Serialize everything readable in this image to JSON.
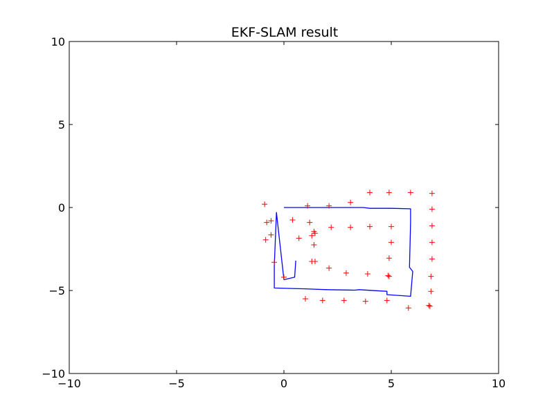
{
  "chart_data": {
    "type": "scatter",
    "title": "EKF-SLAM result",
    "xlabel": "",
    "ylabel": "",
    "xlim": [
      -10,
      10
    ],
    "ylim": [
      -10,
      10
    ],
    "xticks": [
      -10,
      -5,
      0,
      5,
      10
    ],
    "yticks": [
      -10,
      -5,
      0,
      5,
      10
    ],
    "xtick_labels": [
      "−10",
      "−5",
      "0",
      "5",
      "10"
    ],
    "ytick_labels": [
      "−10",
      "−5",
      "0",
      "5",
      "10"
    ],
    "grid": false,
    "colors": {
      "trajectory": "#0000ff",
      "landmarks": "#ff0000"
    },
    "series": [
      {
        "kind": "line",
        "points": [
          [
            0,
            0
          ],
          [
            1,
            0
          ],
          [
            2,
            0
          ],
          [
            3,
            0
          ],
          [
            3.7,
            0
          ],
          [
            4,
            -0.05
          ],
          [
            5,
            -0.05
          ],
          [
            5.9,
            -0.08
          ],
          [
            5.9,
            -0.9
          ],
          [
            5.85,
            -3.6
          ],
          [
            6.0,
            -3.85
          ],
          [
            5.9,
            -5.35
          ],
          [
            4.8,
            -5.25
          ],
          [
            4.8,
            -5.05
          ],
          [
            3.5,
            -4.95
          ],
          [
            3.3,
            -4.98
          ],
          [
            2.0,
            -4.95
          ],
          [
            1.0,
            -4.9
          ],
          [
            -0.45,
            -4.85
          ],
          [
            -0.45,
            -3.5
          ],
          [
            -0.35,
            -0.3
          ],
          [
            0,
            -4.35
          ],
          [
            0.5,
            -4.2
          ],
          [
            0.55,
            -3.2
          ]
        ]
      },
      {
        "kind": "scatter",
        "marker": "plus",
        "points": [
          [
            -0.9,
            0.2
          ],
          [
            1.1,
            0.1
          ],
          [
            2.1,
            0.1
          ],
          [
            3.1,
            0.3
          ],
          [
            4.0,
            0.9
          ],
          [
            4.9,
            0.9
          ],
          [
            5.9,
            0.9
          ],
          [
            6.9,
            0.85
          ],
          [
            -0.8,
            -0.9
          ],
          [
            -0.6,
            -0.8
          ],
          [
            0.4,
            -0.75
          ],
          [
            1.2,
            -0.9
          ],
          [
            -0.6,
            -1.65
          ],
          [
            -0.85,
            -1.95
          ],
          [
            0.7,
            -1.85
          ],
          [
            1.3,
            -1.7
          ],
          [
            1.4,
            -1.45
          ],
          [
            1.45,
            -1.55
          ],
          [
            2.2,
            -1.2
          ],
          [
            3.1,
            -1.2
          ],
          [
            4.0,
            -1.15
          ],
          [
            5.0,
            -1.15
          ],
          [
            6.9,
            -0.1
          ],
          [
            6.9,
            -1.1
          ],
          [
            1.4,
            -2.25
          ],
          [
            5.0,
            -2.1
          ],
          [
            6.9,
            -2.1
          ],
          [
            -0.45,
            -3.3
          ],
          [
            1.3,
            -3.25
          ],
          [
            1.45,
            -3.25
          ],
          [
            4.9,
            -3.05
          ],
          [
            6.9,
            -3.1
          ],
          [
            2.1,
            -3.65
          ],
          [
            2.9,
            -3.95
          ],
          [
            3.9,
            -4.0
          ],
          [
            4.85,
            -4.1
          ],
          [
            4.9,
            -4.15
          ],
          [
            6.85,
            -4.15
          ],
          [
            0.0,
            -4.2
          ],
          [
            6.85,
            -5.05
          ],
          [
            1.0,
            -5.5
          ],
          [
            1.8,
            -5.6
          ],
          [
            2.8,
            -5.6
          ],
          [
            3.8,
            -5.65
          ],
          [
            4.8,
            -5.6
          ],
          [
            5.8,
            -6.05
          ],
          [
            6.75,
            -5.9
          ],
          [
            6.8,
            -5.95
          ]
        ]
      }
    ]
  }
}
